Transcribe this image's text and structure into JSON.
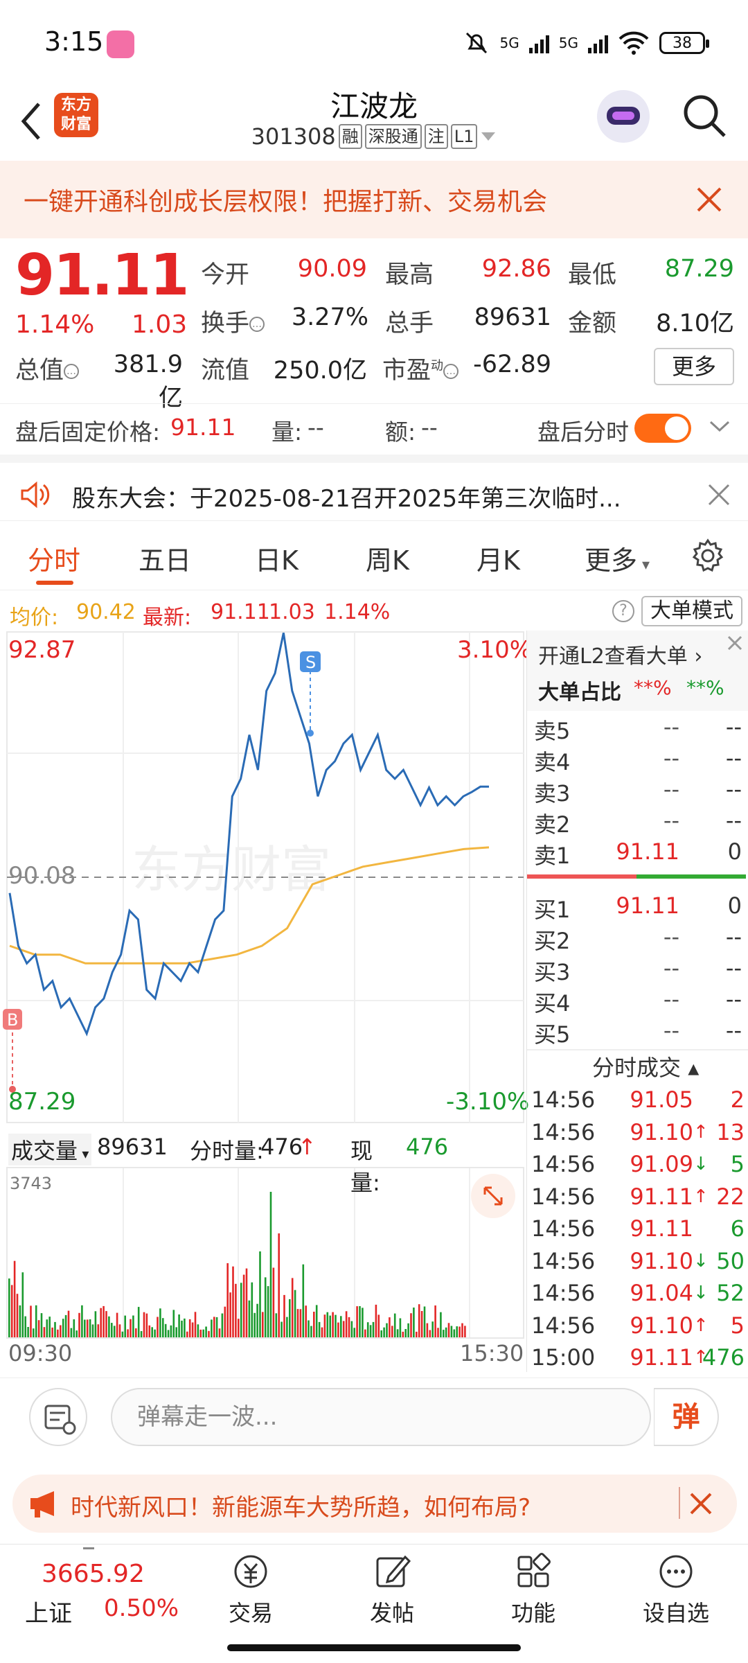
{
  "status_bar": {
    "time": "3:15",
    "network1": "5G",
    "network2": "5G",
    "battery": "38"
  },
  "header": {
    "logo_line1": "东方",
    "logo_line2": "财富",
    "stock_name": "江波龙",
    "stock_code": "301308",
    "tags": [
      "融",
      "深股通",
      "注",
      "L1"
    ]
  },
  "banner": {
    "text": "一键开通科创成长层权限！把握打新、交易机会"
  },
  "quote": {
    "price": "91.11",
    "change_pct": "1.14%",
    "change": "1.03",
    "labels": {
      "open": "今开",
      "high": "最高",
      "low": "最低",
      "turnover": "换手",
      "volume": "总手",
      "amount": "金额",
      "mktcap": "总值",
      "float": "流值",
      "pe": "市盈",
      "pe_sup": "动"
    },
    "values": {
      "open": "90.09",
      "high": "92.86",
      "low": "87.29",
      "turnover": "3.27%",
      "volume": "89631",
      "amount": "8.10亿",
      "mktcap": "381.9亿",
      "float": "250.0亿",
      "pe": "-62.89"
    },
    "more": "更多"
  },
  "after_hours": {
    "label": "盘后固定价格:",
    "price": "91.11",
    "vol_label": "量:",
    "vol": "--",
    "amt_label": "额:",
    "amt": "--",
    "timeshare_label": "盘后分时"
  },
  "announcement": {
    "text": "股东大会：于2025-08-21召开2025年第三次临时..."
  },
  "tabs": [
    "分时",
    "五日",
    "日K",
    "周K",
    "月K",
    "更多"
  ],
  "avg_row": {
    "avg_label": "均价:",
    "avg": "90.42",
    "latest_label": "最新:",
    "latest": "91.11",
    "change": "1.03",
    "change_pct": "1.14%",
    "question": "?",
    "big_mode": "大单模式"
  },
  "chart_data": {
    "type": "line",
    "y_top": "92.87",
    "y_mid": "90.08",
    "y_bottom": "87.29",
    "pct_top": "3.10%",
    "pct_bottom": "-3.10%",
    "ylim": [
      87.29,
      92.87
    ],
    "prev_close": 90.08,
    "marker_sell": "S",
    "marker_buy": "B",
    "watermark": "东方财富",
    "price_series": [
      89.9,
      89.3,
      89.1,
      89.2,
      88.8,
      88.9,
      88.6,
      88.7,
      88.5,
      88.3,
      88.6,
      88.7,
      89.0,
      89.2,
      89.7,
      89.6,
      88.8,
      88.7,
      89.1,
      89.0,
      88.9,
      89.1,
      89.0,
      89.3,
      89.6,
      89.7,
      91.0,
      91.2,
      91.7,
      91.3,
      92.2,
      92.4,
      92.86,
      92.2,
      91.9,
      91.6,
      91.0,
      91.3,
      91.4,
      91.6,
      91.7,
      91.3,
      91.5,
      91.7,
      91.3,
      91.2,
      91.3,
      91.1,
      90.9,
      91.1,
      90.9,
      91.0,
      90.9,
      91.0,
      91.05,
      91.11,
      91.11
    ],
    "avg_series": [
      89.3,
      89.2,
      89.2,
      89.1,
      89.1,
      89.1,
      89.1,
      89.1,
      89.15,
      89.2,
      89.3,
      89.5,
      90.0,
      90.1,
      90.2,
      90.25,
      90.3,
      90.35,
      90.4,
      90.42
    ],
    "vol_label": "成交量",
    "vol_total": "89631",
    "vol_minute_label": "分时量:",
    "vol_minute": "476",
    "vol_now_label": "现量:",
    "vol_now": "476",
    "vol_max": "3743",
    "x_start": "09:30",
    "x_end": "15:30"
  },
  "order_book": {
    "l2_text": "开通L2查看大单",
    "ratio_label": "大单占比",
    "ratio_buy": "**%",
    "ratio_sell": "**%",
    "asks": [
      {
        "label": "卖5",
        "price": "--",
        "vol": "--"
      },
      {
        "label": "卖4",
        "price": "--",
        "vol": "--"
      },
      {
        "label": "卖3",
        "price": "--",
        "vol": "--"
      },
      {
        "label": "卖2",
        "price": "--",
        "vol": "--"
      },
      {
        "label": "卖1",
        "price": "91.11",
        "vol": "0"
      }
    ],
    "bids": [
      {
        "label": "买1",
        "price": "91.11",
        "vol": "0"
      },
      {
        "label": "买2",
        "price": "--",
        "vol": "--"
      },
      {
        "label": "买3",
        "price": "--",
        "vol": "--"
      },
      {
        "label": "买4",
        "price": "--",
        "vol": "--"
      },
      {
        "label": "买5",
        "price": "--",
        "vol": "--"
      }
    ],
    "trades_title": "分时成交",
    "trades": [
      {
        "time": "14:56",
        "price": "91.05",
        "arrow": "",
        "vol": "2",
        "color": "red",
        "vcolor": "red"
      },
      {
        "time": "14:56",
        "price": "91.10↑",
        "arrow": "",
        "vol": "13",
        "color": "red",
        "vcolor": "red"
      },
      {
        "time": "14:56",
        "price": "91.09↓",
        "arrow": "",
        "vol": "5",
        "color": "red",
        "vcolor": "green"
      },
      {
        "time": "14:56",
        "price": "91.11↑",
        "arrow": "",
        "vol": "22",
        "color": "red",
        "vcolor": "red"
      },
      {
        "time": "14:56",
        "price": "91.11",
        "arrow": "",
        "vol": "6",
        "color": "red",
        "vcolor": "green"
      },
      {
        "time": "14:56",
        "price": "91.10↓",
        "arrow": "",
        "vol": "50",
        "color": "red",
        "vcolor": "green"
      },
      {
        "time": "14:56",
        "price": "91.04↓",
        "arrow": "",
        "vol": "52",
        "color": "red",
        "vcolor": "green"
      },
      {
        "time": "14:56",
        "price": "91.10↑",
        "arrow": "",
        "vol": "5",
        "color": "red",
        "vcolor": "red"
      },
      {
        "time": "15:00",
        "price": "91.11↑",
        "arrow": "",
        "vol": "476",
        "color": "red",
        "vcolor": "green"
      }
    ]
  },
  "comment_bar": {
    "placeholder": "弹幕走一波...",
    "dan": "弹"
  },
  "promo": {
    "text": "时代新风口！新能源车大势所趋，如何布局?"
  },
  "bottom_nav": {
    "index_value": "3665.92",
    "index_name": "上证",
    "index_pct": "0.50%",
    "items": [
      "交易",
      "发帖",
      "功能",
      "设自选"
    ]
  }
}
